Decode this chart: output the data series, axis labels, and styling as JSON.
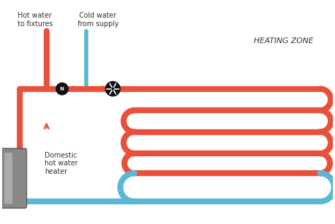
{
  "title": "HEATING ZONE",
  "labels": {
    "hot_water": "Hot water\nto fixtures",
    "cold_water": "Cold water\nfrom supply",
    "heater": "Domestic\nhot water\nheater"
  },
  "colors": {
    "hot": "#E8503A",
    "cold": "#5BB8D4",
    "background": "#FFFFFF",
    "text": "#333333",
    "heater_dark": "#666666",
    "heater_light": "#AAAAAA",
    "valve": "#111111"
  },
  "line_width": 6,
  "figsize": [
    4.74,
    3.17
  ],
  "dpi": 100
}
